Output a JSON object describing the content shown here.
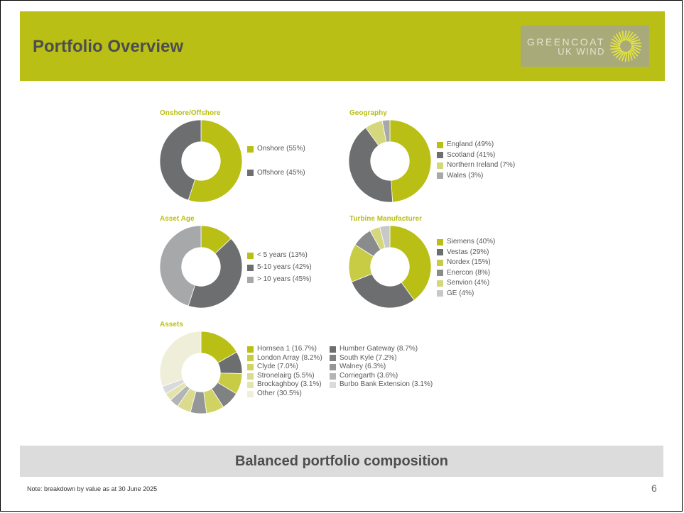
{
  "header": {
    "title": "Portfolio Overview",
    "logo_line1": "GREENCOAT",
    "logo_line2": "UK WIND"
  },
  "colors": {
    "accent": "#b9bf14",
    "dark_grey": "#6d6e70",
    "banner": "#dcdcdc"
  },
  "chart_data": [
    {
      "type": "pie",
      "title": "Onshore/Offshore",
      "labels": [
        "Onshore (55%)",
        "Offshore (45%)"
      ],
      "values": [
        55,
        45
      ],
      "colors": [
        "#b9bf14",
        "#6d6e70"
      ]
    },
    {
      "type": "pie",
      "title": "Geography",
      "labels": [
        "England (49%)",
        "Scotland (41%)",
        "Northern Ireland (7%)",
        "Wales (3%)"
      ],
      "values": [
        49,
        41,
        7,
        3
      ],
      "colors": [
        "#b9bf14",
        "#6d6e70",
        "#d5d77c",
        "#a7a8aa"
      ]
    },
    {
      "type": "pie",
      "title": "Asset Age",
      "labels": [
        "< 5 years (13%)",
        "5-10 years (42%)",
        "> 10 years (45%)"
      ],
      "values": [
        13,
        42,
        45
      ],
      "colors": [
        "#b9bf14",
        "#6d6e70",
        "#a7a8aa"
      ]
    },
    {
      "type": "pie",
      "title": "Turbine Manufacturer",
      "labels": [
        "Siemens (40%)",
        "Vestas (29%)",
        "Nordex (15%)",
        "Enercon (8%)",
        "Senvion (4%)",
        "GE (4%)"
      ],
      "values": [
        40,
        29,
        15,
        8,
        4,
        4
      ],
      "colors": [
        "#b9bf14",
        "#6d6e70",
        "#c8cc45",
        "#8a8b8d",
        "#d5d77c",
        "#c7c8ca"
      ]
    },
    {
      "type": "pie",
      "title": "Assets",
      "labels": [
        "Hornsea 1 (16.7%)",
        "Humber Gateway (8.7%)",
        "London Array (8.2%)",
        "South Kyle (7.2%)",
        "Clyde (7.0%)",
        "Walney (6.3%)",
        "Stronelairg (5.5%)",
        "Corriegarth (3.6%)",
        "Brockaghboy (3.1%)",
        "Burbo Bank Extension (3.1%)",
        "Other (30.5%)"
      ],
      "values": [
        16.7,
        8.7,
        8.2,
        7.2,
        7.0,
        6.3,
        5.5,
        3.6,
        3.1,
        3.1,
        30.5
      ],
      "colors": [
        "#b9bf14",
        "#6d6e70",
        "#c8cc45",
        "#808183",
        "#d0d362",
        "#959698",
        "#dadb8f",
        "#b3b4b6",
        "#e3e4ad",
        "#d9dadb",
        "#efefd9"
      ]
    }
  ],
  "footer": {
    "banner_text": "Balanced portfolio composition",
    "note": "Note: breakdown by value as at 30 June 2025",
    "page_number": "6"
  }
}
